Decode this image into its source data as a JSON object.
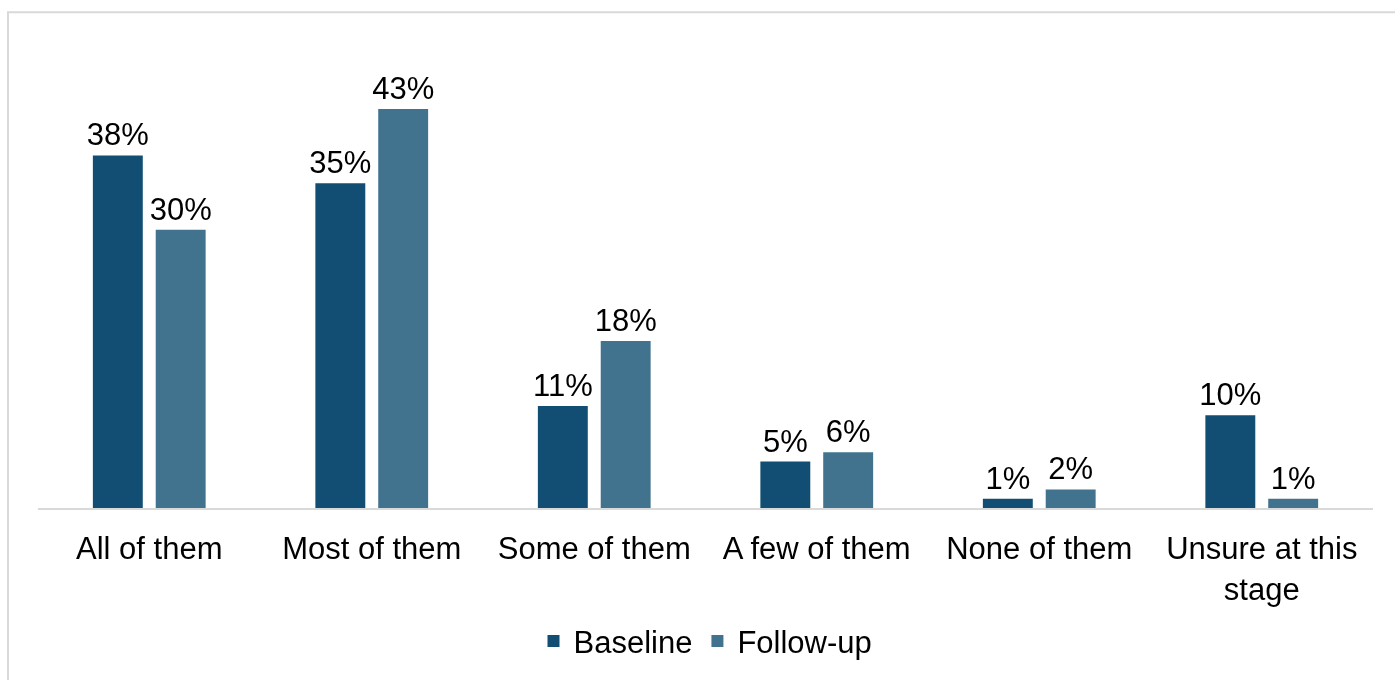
{
  "chart_data": {
    "type": "bar",
    "categories": [
      "All of them",
      "Most of them",
      "Some of them",
      "A few of them",
      "None of them",
      "Unsure at this stage"
    ],
    "series": [
      {
        "name": "Baseline",
        "color": "#124e73",
        "values": [
          38,
          35,
          11,
          5,
          1,
          10
        ],
        "value_labels": [
          "38%",
          "35%",
          "11%",
          "5%",
          "1%",
          "10%"
        ]
      },
      {
        "name": "Follow-up",
        "color": "#41738f",
        "values": [
          30,
          43,
          18,
          6,
          2,
          1
        ],
        "value_labels": [
          "30%",
          "43%",
          "18%",
          "6%",
          "2%",
          "1%"
        ]
      }
    ],
    "tick_labels": "x",
    "legend": "bottom"
  }
}
